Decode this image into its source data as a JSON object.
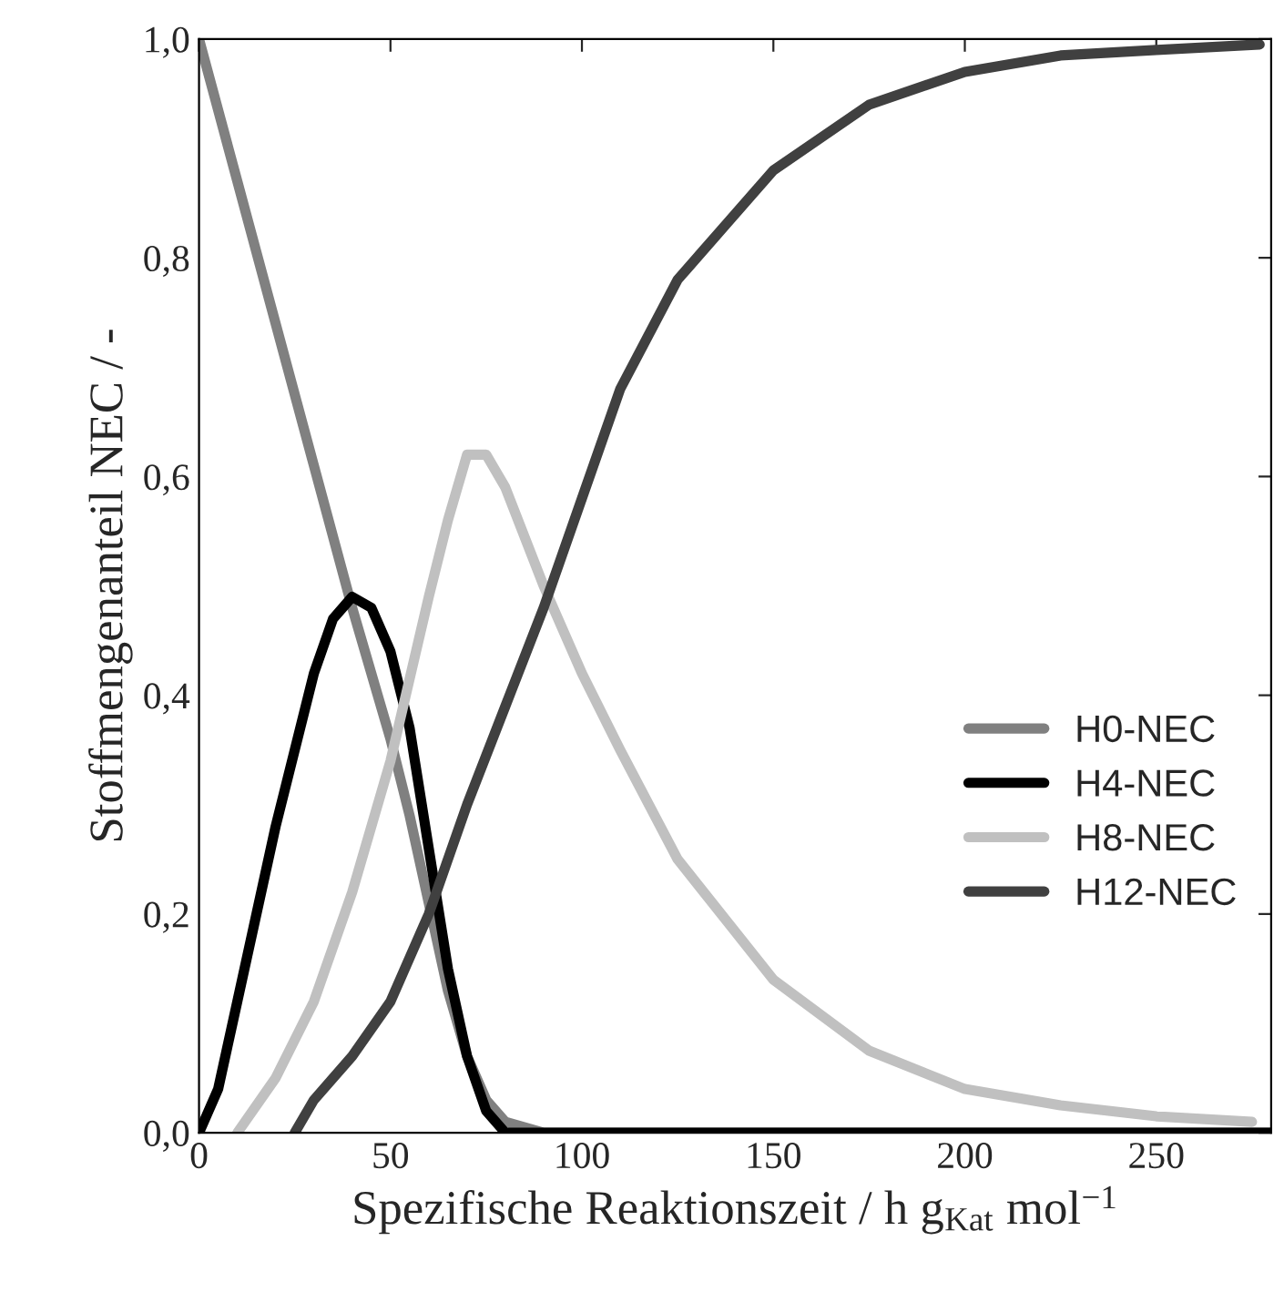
{
  "chart_data": {
    "type": "line",
    "xlabel": "Spezifische Reaktionszeit / h g$_{Kat}$ mol$^{−1}$",
    "ylabel": "Stoffmengenanteil NEC / -",
    "xlim": [
      0,
      280
    ],
    "ylim": [
      0,
      1
    ],
    "xticks": [
      0,
      50,
      100,
      150,
      200,
      250
    ],
    "yticks": [
      {
        "value": 0,
        "label": "0,0"
      },
      {
        "value": 0.2,
        "label": "0,2"
      },
      {
        "value": 0.4,
        "label": "0,4"
      },
      {
        "value": 0.6,
        "label": "0,6"
      },
      {
        "value": 0.8,
        "label": "0,8"
      },
      {
        "value": 1,
        "label": "1,0"
      }
    ],
    "grid": false,
    "legend": "bottom right",
    "line_style": "solid",
    "series": [
      {
        "name": "H0-NEC",
        "color": "#808080",
        "x": [
          0,
          10,
          20,
          30,
          40,
          50,
          55,
          60,
          65,
          70,
          75,
          80,
          90,
          280
        ],
        "values": [
          1.0,
          0.87,
          0.74,
          0.61,
          0.48,
          0.36,
          0.29,
          0.21,
          0.13,
          0.07,
          0.03,
          0.01,
          0,
          0
        ]
      },
      {
        "name": "H4-NEC",
        "color": "#000000",
        "x": [
          0,
          5,
          10,
          20,
          30,
          35,
          40,
          45,
          50,
          55,
          60,
          65,
          70,
          75,
          80,
          280
        ],
        "values": [
          0,
          0.04,
          0.12,
          0.28,
          0.42,
          0.47,
          0.49,
          0.48,
          0.44,
          0.37,
          0.26,
          0.15,
          0.07,
          0.02,
          0,
          0
        ]
      },
      {
        "name": "H8-NEC",
        "color": "#c0c0c0",
        "x": [
          10,
          20,
          30,
          40,
          50,
          60,
          65,
          70,
          75,
          80,
          90,
          100,
          110,
          125,
          150,
          175,
          200,
          225,
          250,
          275
        ],
        "values": [
          0,
          0.05,
          0.12,
          0.22,
          0.34,
          0.49,
          0.56,
          0.62,
          0.62,
          0.59,
          0.5,
          0.42,
          0.35,
          0.25,
          0.14,
          0.075,
          0.04,
          0.025,
          0.015,
          0.01
        ]
      },
      {
        "name": "H12-NEC",
        "color": "#404040",
        "x": [
          25,
          30,
          40,
          50,
          60,
          70,
          80,
          90,
          100,
          110,
          125,
          150,
          175,
          200,
          225,
          250,
          277
        ],
        "values": [
          0,
          0.03,
          0.07,
          0.12,
          0.2,
          0.3,
          0.39,
          0.48,
          0.58,
          0.68,
          0.78,
          0.88,
          0.94,
          0.97,
          0.985,
          0.99,
          0.995
        ]
      }
    ]
  }
}
